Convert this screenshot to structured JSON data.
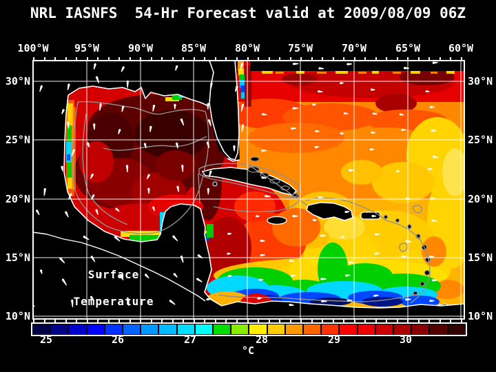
{
  "title": "NRL IASNFS  54-Hr Forecast valid at 2009/08/09 06Z",
  "axes": {
    "lon_ticks": [
      "100°W",
      "95°W",
      "90°W",
      "85°W",
      "80°W",
      "75°W",
      "70°W",
      "65°W",
      "60°W"
    ],
    "lat_ticks_left": [
      "30°N",
      "25°N",
      "20°N",
      "15°N",
      "10°N"
    ],
    "lat_ticks_right": [
      "30°N",
      "25°N",
      "20°N",
      "15°N",
      "10°N"
    ]
  },
  "annotation": {
    "line1": "Surface",
    "line2": "Temperature"
  },
  "colorbar": {
    "unit": "°C",
    "ticks": [
      "25",
      "26",
      "27",
      "28",
      "29",
      "30"
    ],
    "segments": [
      "#000044",
      "#000088",
      "#0000cc",
      "#0000ff",
      "#0033ff",
      "#0066ff",
      "#0099ff",
      "#00bbff",
      "#00ddff",
      "#00ffff",
      "#00dd00",
      "#88ee00",
      "#ffee00",
      "#ffcc00",
      "#ff9900",
      "#ff6600",
      "#ff3300",
      "#ff0000",
      "#ee0000",
      "#cc0000",
      "#aa0000",
      "#880000",
      "#550000",
      "#330000"
    ]
  },
  "colors": {
    "background": "#000000",
    "frame": "#ffffff",
    "grid": "#ffffff",
    "coastline": "#ffffff",
    "bathymetry": "#909090",
    "land": "#000000",
    "text": "#ffffff",
    "wind_arrow": "#ffffff"
  }
}
